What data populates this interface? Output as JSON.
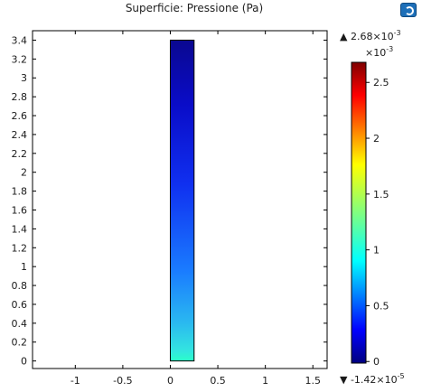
{
  "plot": {
    "title": "Superficie: Pressione (Pa)",
    "app_icon": "comsol-logo-icon"
  },
  "chart_data": {
    "type": "heatmap",
    "title": "Superficie: Pressione (Pa)",
    "xlabel": "",
    "ylabel": "",
    "xlim": [
      -1.45,
      1.65
    ],
    "ylim": [
      -0.08,
      3.5
    ],
    "x_ticks": [
      -1,
      -0.5,
      0,
      0.5,
      1,
      1.5
    ],
    "x_tick_labels": [
      "-1",
      "-0.5",
      "0",
      "0.5",
      "1",
      "1.5"
    ],
    "y_ticks": [
      0,
      0.2,
      0.4,
      0.6,
      0.8,
      1,
      1.2,
      1.4,
      1.6,
      1.8,
      2,
      2.2,
      2.4,
      2.6,
      2.8,
      3,
      3.2,
      3.4
    ],
    "y_tick_labels": [
      "0",
      "0.2",
      "0.4",
      "0.6",
      "0.8",
      "1",
      "1.2",
      "1.4",
      "1.6",
      "1.8",
      "2",
      "2.2",
      "2.4",
      "2.6",
      "2.8",
      "3",
      "3.2",
      "3.4"
    ],
    "domain": {
      "x": [
        0,
        0.25
      ],
      "y": [
        0,
        3.4
      ]
    },
    "field_samples": [
      {
        "y": 0,
        "value": 0.00122
      },
      {
        "y": 0.2,
        "value": 0.00088
      },
      {
        "y": 0.6,
        "value": 0.00062
      },
      {
        "y": 1.2,
        "value": 0.00045
      },
      {
        "y": 2.0,
        "value": 0.00028
      },
      {
        "y": 2.8,
        "value": 0.00012
      },
      {
        "y": 3.4,
        "value": 0.0
      }
    ],
    "colorbar": {
      "colormap": "rainbow",
      "min": -1.42e-05,
      "max": 0.00268,
      "multiplier_label": "×10",
      "multiplier_exp": "-3",
      "ticks": [
        0,
        0.5,
        1,
        1.5,
        2,
        2.5
      ],
      "tick_labels": [
        "0",
        "0.5",
        "1",
        "1.5",
        "2",
        "2.5"
      ],
      "max_prefix": "▲ 2.68×10",
      "max_exp": "-3",
      "min_prefix": "▼ -1.42×10",
      "min_exp": "-5"
    },
    "grid": false
  }
}
